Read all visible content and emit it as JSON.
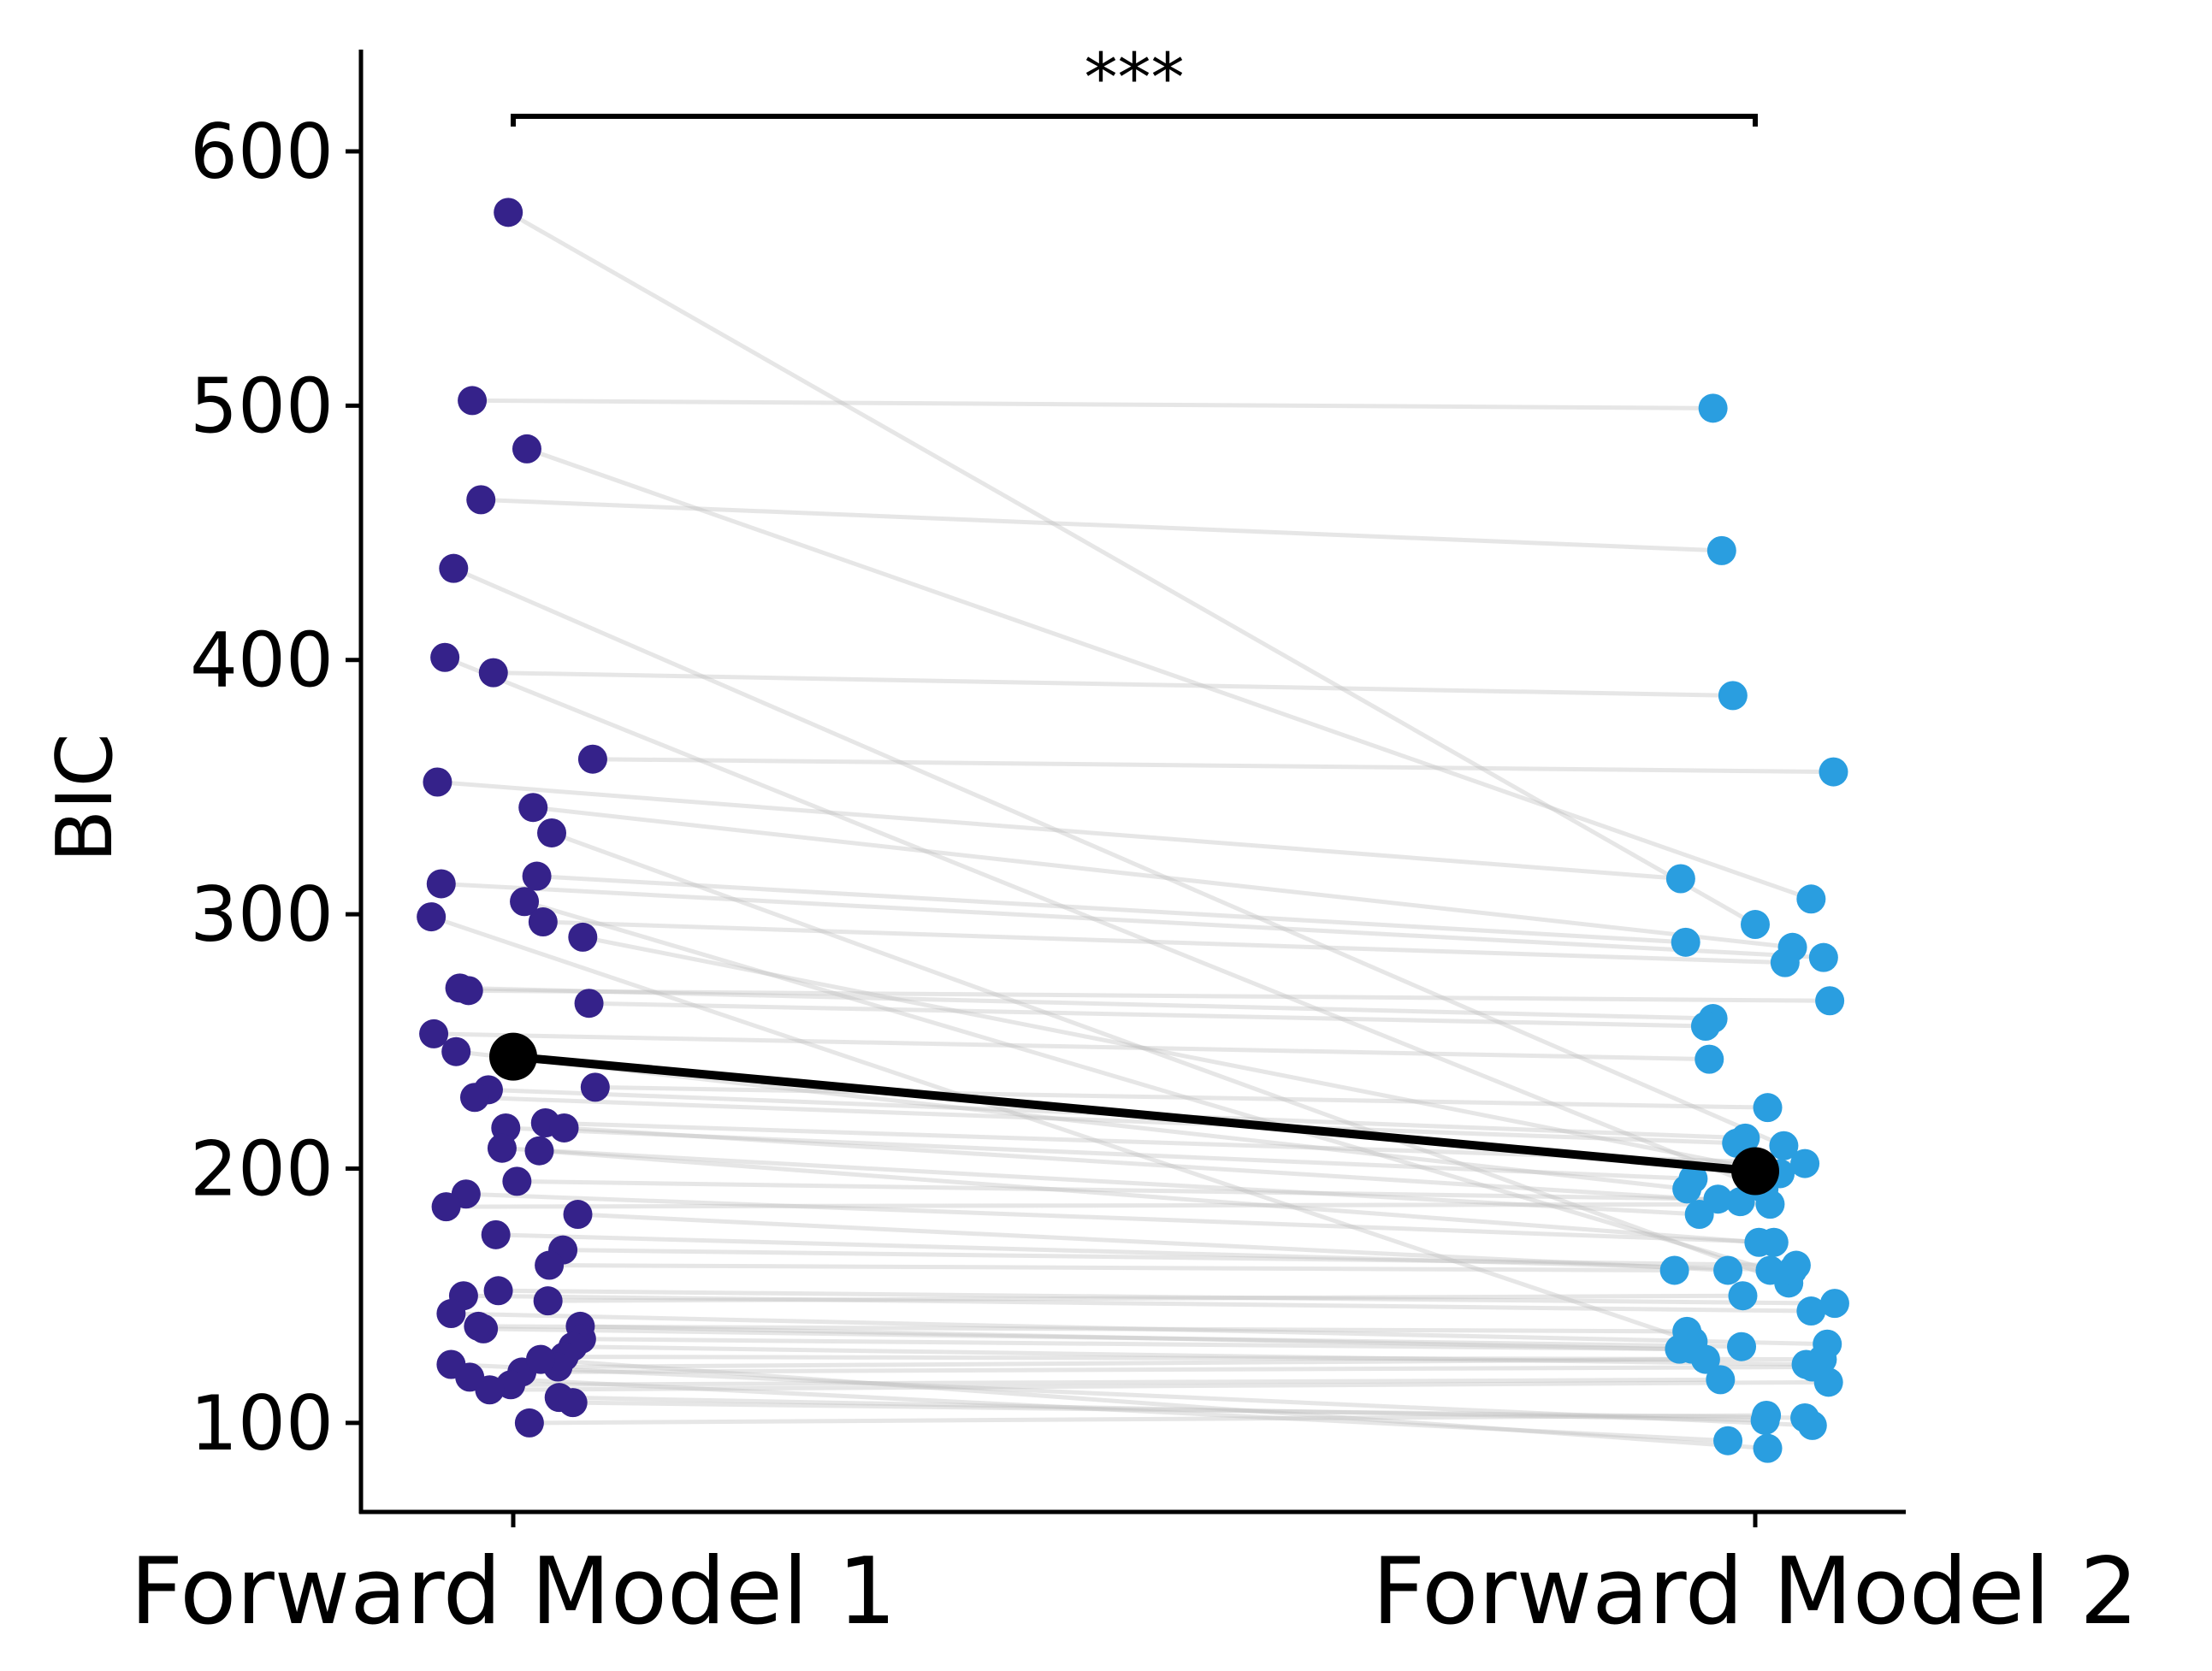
{
  "chart_data": {
    "type": "scatter",
    "title": "",
    "xlabel": "",
    "ylabel": "BIC",
    "ylim": [
      65,
      640
    ],
    "yticks": [
      100,
      200,
      300,
      400,
      500,
      600
    ],
    "categories": [
      "Forward Model 1",
      "Forward Model 2"
    ],
    "significance": "***",
    "grid": false,
    "legend": "none",
    "colors": {
      "model1": "#35228a",
      "model2": "#2a9ee0",
      "pair_line": "#bdbdbd",
      "mean": "#000000"
    },
    "mean": {
      "values": [
        244,
        199
      ]
    },
    "pairs": [
      {
        "x1": -0.004,
        "y1": 576,
        "x2": 0.0,
        "y2": 296
      },
      {
        "x1": -0.033,
        "y1": 502,
        "x2": -0.034,
        "y2": 499
      },
      {
        "x1": 0.011,
        "y1": 483,
        "x2": 0.045,
        "y2": 306
      },
      {
        "x1": -0.026,
        "y1": 463,
        "x2": -0.027,
        "y2": 443
      },
      {
        "x1": -0.048,
        "y1": 436,
        "x2": 0.023,
        "y2": 209
      },
      {
        "x1": -0.055,
        "y1": 401,
        "x2": 0.007,
        "y2": 192
      },
      {
        "x1": -0.016,
        "y1": 395,
        "x2": -0.018,
        "y2": 386
      },
      {
        "x1": 0.064,
        "y1": 361,
        "x2": 0.063,
        "y2": 356
      },
      {
        "x1": -0.061,
        "y1": 352,
        "x2": -0.06,
        "y2": 314
      },
      {
        "x1": 0.016,
        "y1": 342,
        "x2": 0.03,
        "y2": 287
      },
      {
        "x1": 0.031,
        "y1": 332,
        "x2": 0.027,
        "y2": 155
      },
      {
        "x1": -0.058,
        "y1": 312,
        "x2": 0.055,
        "y2": 283
      },
      {
        "x1": 0.019,
        "y1": 315,
        "x2": -0.056,
        "y2": 289
      },
      {
        "x1": 0.009,
        "y1": 305,
        "x2": 0.012,
        "y2": 160
      },
      {
        "x1": 0.024,
        "y1": 297,
        "x2": 0.024,
        "y2": 281
      },
      {
        "x1": -0.066,
        "y1": 299,
        "x2": -0.05,
        "y2": 132
      },
      {
        "x1": 0.056,
        "y1": 291,
        "x2": 0.02,
        "y2": 198
      },
      {
        "x1": -0.043,
        "y1": 271,
        "x2": -0.034,
        "y2": 259
      },
      {
        "x1": -0.036,
        "y1": 270,
        "x2": 0.06,
        "y2": 266
      },
      {
        "x1": 0.061,
        "y1": 265,
        "x2": -0.04,
        "y2": 256
      },
      {
        "x1": -0.064,
        "y1": 253,
        "x2": -0.037,
        "y2": 243
      },
      {
        "x1": -0.046,
        "y1": 246,
        "x2": -0.055,
        "y2": 192
      },
      {
        "x1": 0.066,
        "y1": 232,
        "x2": 0.01,
        "y2": 224
      },
      {
        "x1": -0.02,
        "y1": 231,
        "x2": -0.008,
        "y2": 212
      },
      {
        "x1": -0.031,
        "y1": 228,
        "x2": -0.015,
        "y2": 210
      },
      {
        "x1": 0.026,
        "y1": 218,
        "x2": 0.04,
        "y2": 202
      },
      {
        "x1": -0.006,
        "y1": 216,
        "x2": -0.05,
        "y2": 196
      },
      {
        "x1": 0.041,
        "y1": 216,
        "x2": -0.012,
        "y2": 187
      },
      {
        "x1": -0.009,
        "y1": 208,
        "x2": -0.045,
        "y2": 182
      },
      {
        "x1": 0.021,
        "y1": 207,
        "x2": 0.003,
        "y2": 171
      },
      {
        "x1": 0.003,
        "y1": 195,
        "x2": -0.03,
        "y2": 188
      },
      {
        "x1": -0.038,
        "y1": 190,
        "x2": 0.015,
        "y2": 171
      },
      {
        "x1": -0.054,
        "y1": 185,
        "x2": 0.012,
        "y2": 186
      },
      {
        "x1": 0.052,
        "y1": 182,
        "x2": -0.022,
        "y2": 160
      },
      {
        "x1": -0.014,
        "y1": 174,
        "x2": 0.03,
        "y2": 160
      },
      {
        "x1": 0.04,
        "y1": 168,
        "x2": 0.033,
        "y2": 162
      },
      {
        "x1": 0.029,
        "y1": 162,
        "x2": -0.065,
        "y2": 160
      },
      {
        "x1": -0.012,
        "y1": 152,
        "x2": 0.064,
        "y2": 147
      },
      {
        "x1": -0.04,
        "y1": 150,
        "x2": 0.045,
        "y2": 144
      },
      {
        "x1": 0.028,
        "y1": 148,
        "x2": -0.01,
        "y2": 150
      },
      {
        "x1": -0.05,
        "y1": 143,
        "x2": 0.058,
        "y2": 131
      },
      {
        "x1": -0.028,
        "y1": 138,
        "x2": -0.055,
        "y2": 136
      },
      {
        "x1": -0.024,
        "y1": 137,
        "x2": -0.011,
        "y2": 130
      },
      {
        "x1": 0.054,
        "y1": 138,
        "x2": -0.061,
        "y2": 129
      },
      {
        "x1": 0.055,
        "y1": 133,
        "x2": -0.051,
        "y2": 129
      },
      {
        "x1": 0.048,
        "y1": 130,
        "x2": 0.041,
        "y2": 123
      },
      {
        "x1": 0.041,
        "y1": 126,
        "x2": 0.054,
        "y2": 125
      },
      {
        "x1": 0.036,
        "y1": 122,
        "x2": -0.04,
        "y2": 125
      },
      {
        "x1": 0.007,
        "y1": 120,
        "x2": 0.046,
        "y2": 122
      },
      {
        "x1": -0.002,
        "y1": 115,
        "x2": -0.028,
        "y2": 117
      },
      {
        "x1": -0.019,
        "y1": 113,
        "x2": 0.059,
        "y2": 116
      },
      {
        "x1": 0.013,
        "y1": 100,
        "x2": 0.009,
        "y2": 103
      },
      {
        "x1": 0.037,
        "y1": 110,
        "x2": 0.008,
        "y2": 101
      },
      {
        "x1": 0.048,
        "y1": 108,
        "x2": 0.04,
        "y2": 102
      },
      {
        "x1": -0.05,
        "y1": 123,
        "x2": 0.046,
        "y2": 99
      },
      {
        "x1": -0.035,
        "y1": 118,
        "x2": -0.022,
        "y2": 93
      },
      {
        "x1": 0.022,
        "y1": 125,
        "x2": 0.01,
        "y2": 90
      }
    ]
  }
}
